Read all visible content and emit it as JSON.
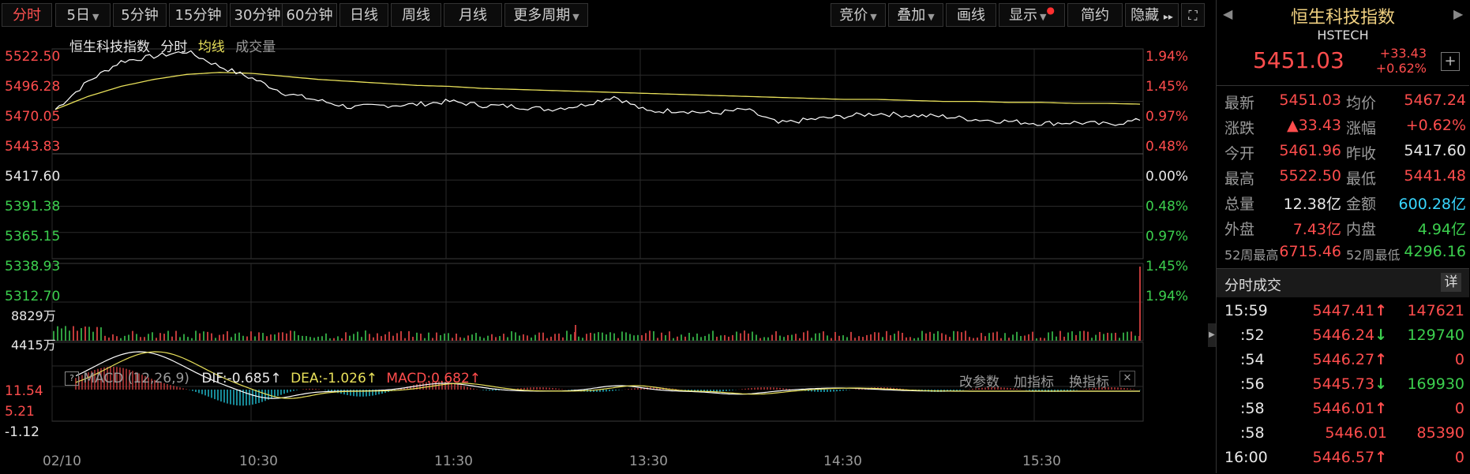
{
  "toolbar": {
    "periods": [
      "分时",
      "5日",
      "5分钟",
      "15分钟",
      "30分钟",
      "60分钟",
      "日线",
      "周线",
      "月线",
      "更多周期"
    ],
    "tools": [
      "竞价",
      "叠加",
      "画线",
      "显示",
      "简约",
      "隐藏"
    ],
    "hide_arrows": "▸▸"
  },
  "chart": {
    "header_name": "恒生科技指数",
    "header_mode": "分时",
    "header_avg": "均线",
    "header_volume": "成交量",
    "price_ticks": [
      "5522.50",
      "5496.28",
      "5470.05",
      "5443.83",
      "5417.60",
      "5391.38",
      "5365.15",
      "5338.93",
      "5312.70"
    ],
    "pct_ticks": [
      "1.94%",
      "1.45%",
      "0.97%",
      "0.48%",
      "0.00%",
      "0.48%",
      "0.97%",
      "1.45%",
      "1.94%"
    ],
    "vol_ticks": [
      "8829万",
      "4415万"
    ],
    "macd_ticks": [
      "11.54",
      "5.21",
      "-1.12"
    ],
    "macd": {
      "label": "MACD (12,26,9)",
      "dif": "DIF:-0.685↑",
      "dea": "DEA:-1.026↑",
      "value": "MACD:0.682↑",
      "buttons": [
        "改参数",
        "加指标",
        "换指标"
      ]
    },
    "time_labels": [
      "02/10",
      "10:30",
      "11:30",
      "13:30",
      "14:30",
      "15:30"
    ],
    "colors": {
      "up": "#ff4d4d",
      "down": "#3ccf4e",
      "price_line": "#ffffff",
      "avg_line": "#e8e05a",
      "grid": "#2a2a2a"
    }
  },
  "chart_data": {
    "type": "line",
    "x": [
      "09:30",
      "09:40",
      "09:50",
      "10:00",
      "10:10",
      "10:20",
      "10:30",
      "10:40",
      "10:50",
      "11:00",
      "11:10",
      "11:20",
      "11:30",
      "11:40",
      "11:50",
      "12:00",
      "13:10",
      "13:20",
      "13:30",
      "13:40",
      "13:50",
      "14:00",
      "14:10",
      "14:20",
      "14:30",
      "14:40",
      "14:50",
      "15:00",
      "15:10",
      "15:20",
      "15:30",
      "15:40",
      "15:50",
      "16:00"
    ],
    "series": [
      {
        "values": [
          5461.96,
          5490,
          5510,
          5515,
          5520,
          5505,
          5493,
          5478,
          5471,
          5464,
          5466,
          5467,
          5470,
          5466,
          5465,
          5462,
          5466,
          5475,
          5460,
          5461,
          5458,
          5462,
          5448,
          5452,
          5455,
          5458,
          5456,
          5455,
          5452,
          5450,
          5448,
          5449,
          5447,
          5451.03
        ]
      },
      {
        "values": [
          5461.96,
          5475,
          5485,
          5492,
          5497,
          5499,
          5498,
          5495,
          5492,
          5490,
          5488,
          5486,
          5485,
          5483,
          5482,
          5481,
          5480,
          5479,
          5478,
          5477,
          5476,
          5475,
          5474,
          5473,
          5472,
          5472,
          5471,
          5470,
          5470,
          5469,
          5469,
          5468,
          5468,
          5467.24
        ]
      }
    ],
    "ylim": [
      5312.7,
      5522.5
    ],
    "reference": 5417.6
  },
  "quote": {
    "name": "恒生科技指数",
    "code": "HSTECH",
    "price": "5451.03",
    "change": "+33.43",
    "change_pct": "+0.62%",
    "plus": "+",
    "rows": [
      {
        "l1": "最新",
        "v1": "5451.03",
        "c1": "red",
        "l2": "均价",
        "v2": "5467.24",
        "c2": "red"
      },
      {
        "l1": "涨跌",
        "v1": "▲33.43",
        "c1": "red",
        "l2": "涨幅",
        "v2": "+0.62%",
        "c2": "red"
      },
      {
        "l1": "今开",
        "v1": "5461.96",
        "c1": "red",
        "l2": "昨收",
        "v2": "5417.60",
        "c2": "white"
      },
      {
        "l1": "最高",
        "v1": "5522.50",
        "c1": "red",
        "l2": "最低",
        "v2": "5441.48",
        "c2": "red"
      },
      {
        "l1": "总量",
        "v1": "12.38亿",
        "c1": "white",
        "l2": "金额",
        "v2": "600.28亿",
        "c2": "cyan"
      },
      {
        "l1": "外盘",
        "v1": "7.43亿",
        "c1": "red",
        "l2": "内盘",
        "v2": "4.94亿",
        "c2": "green"
      },
      {
        "l1": "52周最高",
        "v1": "6715.46",
        "c1": "red",
        "l2": "52周最低",
        "v2": "4296.16",
        "c2": "green"
      }
    ]
  },
  "trades": {
    "title": "分时成交",
    "detail": "详",
    "rows": [
      {
        "time": "15:59",
        "price": "5447.41",
        "dir": "up",
        "vol": "147621",
        "vcolor": "red"
      },
      {
        "time": ":52",
        "price": "5446.24",
        "dir": "down",
        "vol": "129740",
        "vcolor": "green"
      },
      {
        "time": ":54",
        "price": "5446.27",
        "dir": "up",
        "vol": "0",
        "vcolor": "red"
      },
      {
        "time": ":56",
        "price": "5445.73",
        "dir": "down",
        "vol": "169930",
        "vcolor": "green"
      },
      {
        "time": ":58",
        "price": "5446.01",
        "dir": "up",
        "vol": "0",
        "vcolor": "red"
      },
      {
        "time": ":58",
        "price": "5446.01",
        "dir": "",
        "vol": "85390",
        "vcolor": "red"
      },
      {
        "time": "16:00",
        "price": "5446.57",
        "dir": "up",
        "vol": "0",
        "vcolor": "red"
      }
    ]
  }
}
